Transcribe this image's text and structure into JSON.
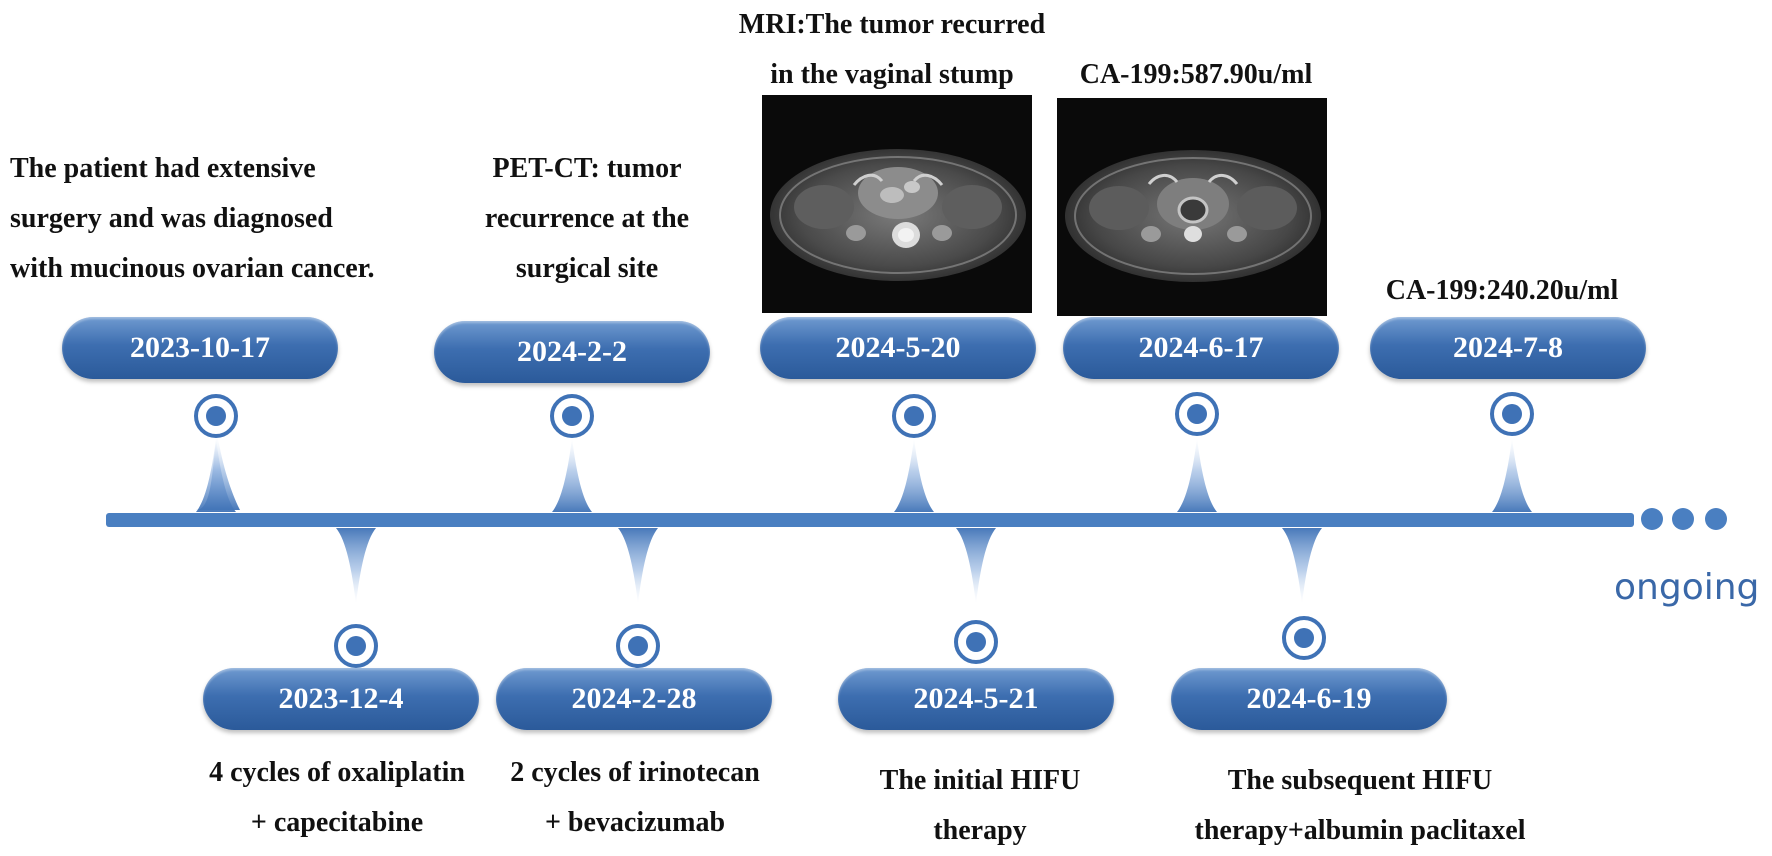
{
  "top_events": [
    {
      "date": "2023-10-17",
      "lines": [
        "The patient had extensive",
        "surgery and was diagnosed",
        "with mucinous ovarian cancer."
      ]
    },
    {
      "date": "2024-2-2",
      "lines": [
        "PET-CT: tumor",
        "recurrence at the",
        "surgical site"
      ]
    },
    {
      "date": "2024-5-20",
      "lines": [
        "MRI:The tumor recurred",
        "in the vaginal stump"
      ]
    },
    {
      "date": "2024-6-17",
      "lines": [
        "CA-199:587.90u/ml"
      ]
    },
    {
      "date": "2024-7-8",
      "lines": [
        "CA-199:240.20u/ml"
      ]
    }
  ],
  "bottom_events": [
    {
      "date": "2023-12-4",
      "lines": [
        "4 cycles of oxaliplatin",
        "+ capecitabine"
      ]
    },
    {
      "date": "2024-2-28",
      "lines": [
        "2 cycles of irinotecan",
        "+ bevacizumab"
      ]
    },
    {
      "date": "2024-5-21",
      "lines": [
        "The initial HIFU",
        "therapy"
      ]
    },
    {
      "date": "2024-6-19",
      "lines": [
        "The subsequent HIFU",
        "therapy+albumin paclitaxel"
      ]
    }
  ],
  "ongoing_label": "ongoing",
  "colors": {
    "timeline": "#4a7fc1",
    "pill_dark": "#2b5a9a",
    "pill_light": "#6f9ad0",
    "ongoing_text": "#3a68a8",
    "text": "#111111"
  }
}
